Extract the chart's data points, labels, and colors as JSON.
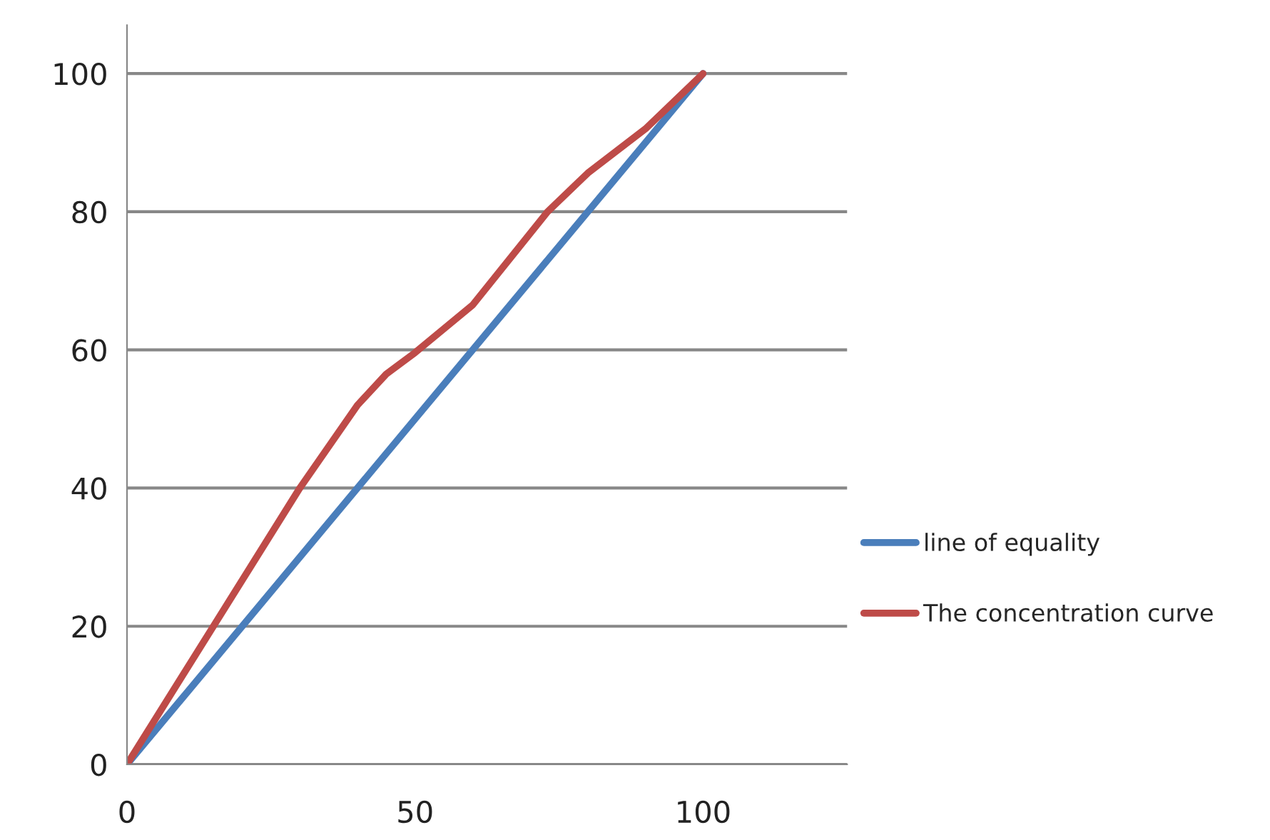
{
  "chart_data": {
    "type": "line",
    "xlim": [
      0,
      125
    ],
    "xticks": [
      0,
      50,
      100
    ],
    "ylim": [
      0,
      107
    ],
    "yticks": [
      0,
      20,
      40,
      60,
      80,
      100
    ],
    "grid": "y",
    "legend": "right",
    "marker": "none",
    "line_style": "solid",
    "series": [
      {
        "name": "line of equality",
        "color": "#4a7ebb",
        "x": [
          0,
          100
        ],
        "values": [
          0,
          100
        ]
      },
      {
        "name": "The concentration curve",
        "color": "#be4b48",
        "x": [
          0,
          15,
          30,
          40,
          45,
          50,
          60,
          73,
          80,
          90,
          100
        ],
        "values": [
          0,
          20,
          40,
          52,
          56.5,
          59.6,
          66.5,
          80,
          85.6,
          92,
          100
        ]
      }
    ]
  }
}
